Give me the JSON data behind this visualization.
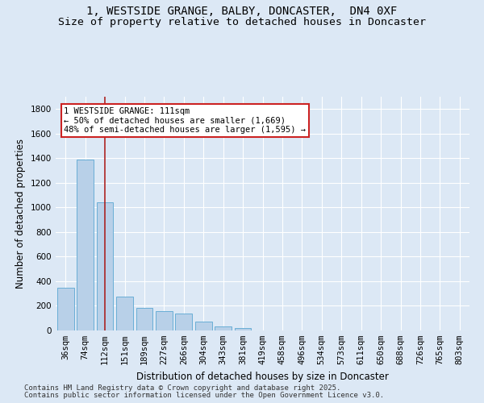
{
  "title_line1": "1, WESTSIDE GRANGE, BALBY, DONCASTER,  DN4 0XF",
  "title_line2": "Size of property relative to detached houses in Doncaster",
  "xlabel": "Distribution of detached houses by size in Doncaster",
  "ylabel": "Number of detached properties",
  "categories": [
    "36sqm",
    "74sqm",
    "112sqm",
    "151sqm",
    "189sqm",
    "227sqm",
    "266sqm",
    "304sqm",
    "343sqm",
    "381sqm",
    "419sqm",
    "458sqm",
    "496sqm",
    "534sqm",
    "573sqm",
    "611sqm",
    "650sqm",
    "688sqm",
    "726sqm",
    "765sqm",
    "803sqm"
  ],
  "values": [
    350,
    1390,
    1040,
    275,
    185,
    160,
    135,
    75,
    30,
    20,
    0,
    0,
    0,
    0,
    0,
    0,
    0,
    0,
    0,
    0,
    0
  ],
  "bar_color": "#b8d0e8",
  "bar_edge_color": "#6aaed6",
  "vline_x_index": 2,
  "vline_color": "#aa2222",
  "annotation_text": "1 WESTSIDE GRANGE: 111sqm\n← 50% of detached houses are smaller (1,669)\n48% of semi-detached houses are larger (1,595) →",
  "annotation_box_color": "#ffffff",
  "annotation_box_edge_color": "#cc2222",
  "ylim": [
    0,
    1900
  ],
  "yticks": [
    0,
    200,
    400,
    600,
    800,
    1000,
    1200,
    1400,
    1600,
    1800
  ],
  "background_color": "#dce8f5",
  "plot_bg_color": "#dce8f5",
  "grid_color": "#ffffff",
  "footer_line1": "Contains HM Land Registry data © Crown copyright and database right 2025.",
  "footer_line2": "Contains public sector information licensed under the Open Government Licence v3.0.",
  "title_fontsize": 10,
  "subtitle_fontsize": 9.5,
  "axis_label_fontsize": 8.5,
  "tick_fontsize": 7.5,
  "annotation_fontsize": 7.5,
  "footer_fontsize": 6.5
}
